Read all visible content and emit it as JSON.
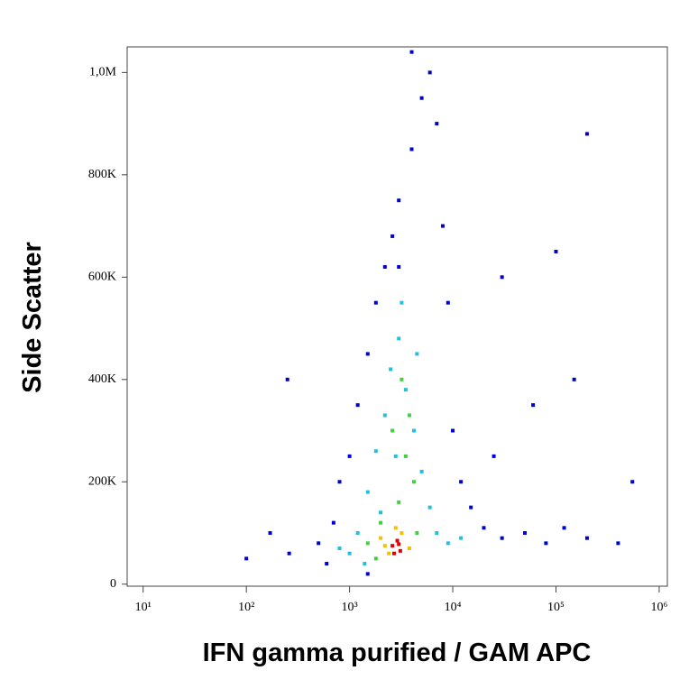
{
  "chart_data": {
    "type": "scatter",
    "x_label": "IFN gamma purified / GAM APC",
    "y_label": "Side Scatter",
    "xscale": "log",
    "xlim": [
      7,
      1200000
    ],
    "ylim": [
      -4000,
      1050000
    ],
    "xticks": [
      {
        "value": 10,
        "label": "10¹"
      },
      {
        "value": 100,
        "label": "10²"
      },
      {
        "value": 1000,
        "label": "10³"
      },
      {
        "value": 10000,
        "label": "10⁴"
      },
      {
        "value": 100000,
        "label": "10⁵"
      },
      {
        "value": 1000000,
        "label": "10⁶"
      }
    ],
    "yticks": [
      0,
      {
        "value": 200000,
        "label": "200K"
      },
      {
        "value": 400000,
        "label": "400K"
      },
      {
        "value": 600000,
        "label": "600K"
      },
      {
        "value": 800000,
        "label": "800K"
      },
      {
        "value": 1000000,
        "label": "1,0M"
      }
    ],
    "series": [
      {
        "color": "#0000d0",
        "x": [
          250,
          100,
          170,
          260,
          500,
          700,
          800,
          1000,
          1200,
          1500,
          1800,
          2200,
          2600,
          3000,
          4000,
          5000,
          6000,
          7000,
          8000,
          9000,
          10000,
          12000,
          15000,
          20000,
          30000,
          50000,
          80000,
          120000,
          200000,
          400000,
          550000,
          150000,
          100000,
          200000,
          30000,
          60000,
          25000,
          4000,
          600,
          1500,
          3000
        ],
        "values": [
          400000,
          50000,
          100000,
          60000,
          80000,
          120000,
          200000,
          250000,
          350000,
          450000,
          550000,
          620000,
          680000,
          750000,
          850000,
          950000,
          1000000,
          900000,
          700000,
          550000,
          300000,
          200000,
          150000,
          110000,
          90000,
          100000,
          80000,
          110000,
          90000,
          80000,
          200000,
          400000,
          650000,
          880000,
          600000,
          350000,
          250000,
          1040000,
          40000,
          20000,
          620000
        ]
      },
      {
        "color": "#20c0e0",
        "x": [
          1200,
          1500,
          1800,
          2200,
          2500,
          3000,
          3500,
          4200,
          5000,
          6000,
          7000,
          9000,
          1000,
          1400,
          2000,
          3200,
          4500,
          2800,
          12000,
          800
        ],
        "values": [
          100000,
          180000,
          260000,
          330000,
          420000,
          480000,
          380000,
          300000,
          220000,
          150000,
          100000,
          80000,
          60000,
          40000,
          140000,
          550000,
          450000,
          250000,
          90000,
          70000
        ]
      },
      {
        "color": "#40d040",
        "x": [
          1500,
          2000,
          3500,
          3800,
          3200,
          4200,
          1800,
          4500,
          3000,
          2600
        ],
        "values": [
          80000,
          120000,
          250000,
          330000,
          400000,
          200000,
          50000,
          100000,
          160000,
          300000
        ]
      },
      {
        "color": "#f8c000",
        "x": [
          2000,
          2400,
          3200,
          3800,
          2800,
          2200
        ],
        "values": [
          90000,
          60000,
          100000,
          70000,
          110000,
          75000
        ]
      },
      {
        "color": "#e00000",
        "x": [
          2600,
          2900,
          3100,
          2700,
          3000
        ],
        "values": [
          75000,
          85000,
          65000,
          60000,
          78000
        ]
      }
    ]
  }
}
